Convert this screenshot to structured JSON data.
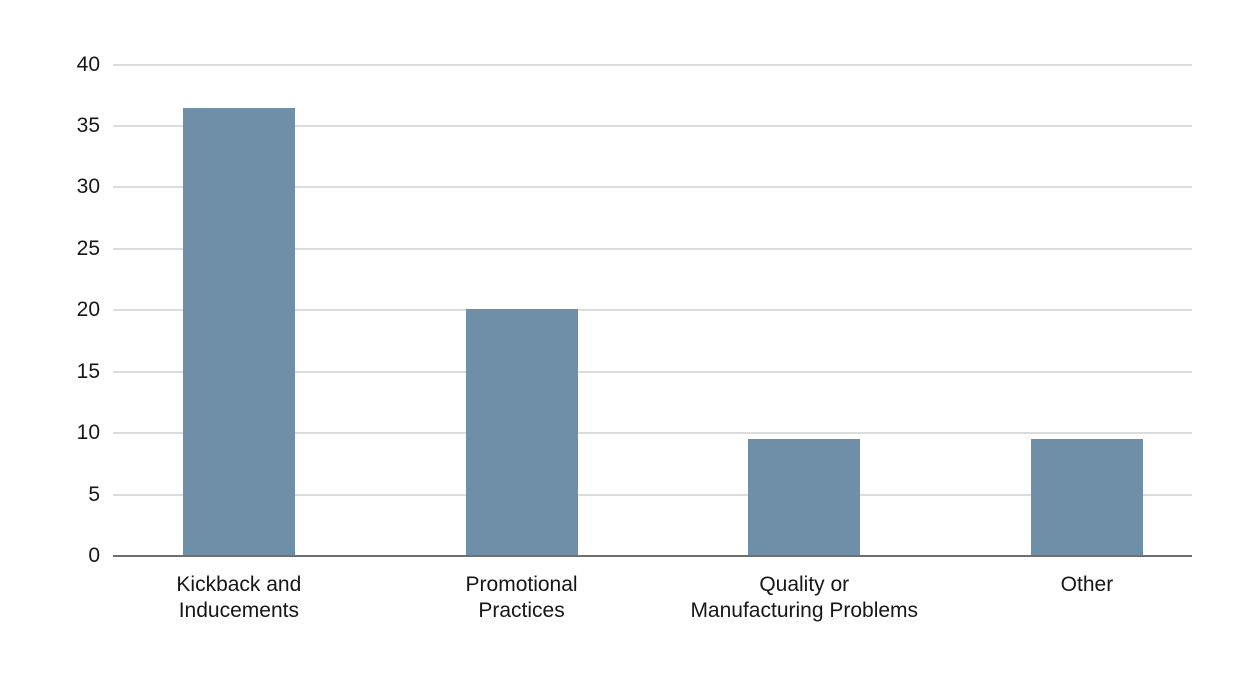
{
  "chart_data": {
    "type": "bar",
    "categories": [
      "Kickback and\nInducements",
      "Promotional\nPractices",
      "Quality or\nManufacturing Problems",
      "Other"
    ],
    "values": [
      36.4,
      20,
      9.4,
      9.4
    ],
    "title": "",
    "xlabel": "",
    "ylabel": "",
    "ylim": [
      0,
      40
    ],
    "yticks": [
      0,
      5,
      10,
      15,
      20,
      25,
      30,
      35,
      40
    ],
    "grid": true,
    "legend": false,
    "colors": {
      "bar": "#6e8fa7",
      "gridline": "#dcdcdc",
      "axis_line": "#6f6f6f",
      "tick_label": "#161616",
      "background": "#ffffff"
    }
  }
}
